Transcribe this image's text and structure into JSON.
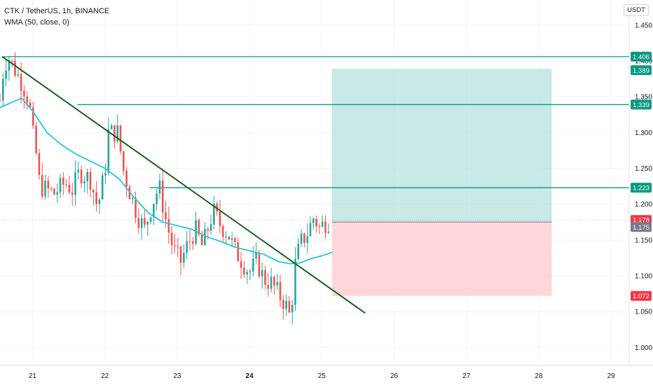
{
  "header": {
    "symbol_line": "CTK / TetherUS, 1h, BINANCE",
    "indicator_line": "WMA (50, close, 0)",
    "currency": "USDT"
  },
  "colors": {
    "up": "#26a69a",
    "down": "#ef5350",
    "wma": "#26c6da",
    "trendline": "#1b5e20",
    "level": "#089981",
    "profit_zone": "#b2dfdb",
    "loss_zone": "#ffcdd2",
    "last_price_badge": "#f23645",
    "entry_badge": "#787b86"
  },
  "chart_data": {
    "type": "candlestick",
    "title": "CTK / TetherUS, 1h, BINANCE",
    "ylim": [
      0.975,
      1.485
    ],
    "xlim": [
      20.55,
      29.25
    ],
    "y_ticks": [
      1.0,
      1.05,
      1.1,
      1.15,
      1.2,
      1.25,
      1.3,
      1.35,
      1.4,
      1.45
    ],
    "y_tick_labels": [
      "1.000",
      "1.050",
      "1.100",
      "1.150",
      "1.200",
      "1.250",
      "1.300",
      "1.350",
      "1.400",
      "1.450"
    ],
    "x_ticks": [
      21,
      22,
      23,
      24,
      25,
      26,
      27,
      28,
      29
    ],
    "x_tick_labels": [
      "21",
      "22",
      "23",
      "24",
      "25",
      "26",
      "27",
      "28",
      "29"
    ],
    "grid": true,
    "candle_path": [
      [
        20.55,
        1.345
      ],
      [
        20.6,
        1.39
      ],
      [
        20.66,
        1.406
      ],
      [
        20.85,
        1.37
      ],
      [
        20.95,
        1.345
      ],
      [
        21.0,
        1.3
      ],
      [
        21.05,
        1.27
      ],
      [
        21.1,
        1.225
      ],
      [
        21.3,
        1.215
      ],
      [
        21.45,
        1.23
      ],
      [
        21.55,
        1.22
      ],
      [
        21.65,
        1.245
      ],
      [
        21.8,
        1.235
      ],
      [
        21.9,
        1.195
      ],
      [
        22.0,
        1.245
      ],
      [
        22.05,
        1.3
      ],
      [
        22.18,
        1.3
      ],
      [
        22.25,
        1.25
      ],
      [
        22.35,
        1.215
      ],
      [
        22.45,
        1.185
      ],
      [
        22.55,
        1.165
      ],
      [
        22.65,
        1.2
      ],
      [
        22.75,
        1.225
      ],
      [
        22.85,
        1.175
      ],
      [
        22.95,
        1.135
      ],
      [
        23.05,
        1.12
      ],
      [
        23.15,
        1.145
      ],
      [
        23.25,
        1.165
      ],
      [
        23.35,
        1.14
      ],
      [
        23.45,
        1.175
      ],
      [
        23.5,
        1.19
      ],
      [
        23.6,
        1.17
      ],
      [
        23.7,
        1.16
      ],
      [
        23.8,
        1.135
      ],
      [
        23.9,
        1.12
      ],
      [
        24.0,
        1.105
      ],
      [
        24.1,
        1.12
      ],
      [
        24.2,
        1.095
      ],
      [
        24.3,
        1.09
      ],
      [
        24.4,
        1.075
      ],
      [
        24.5,
        1.06
      ],
      [
        24.57,
        1.04
      ],
      [
        24.62,
        1.11
      ],
      [
        24.7,
        1.145
      ],
      [
        24.8,
        1.16
      ],
      [
        24.9,
        1.185
      ],
      [
        24.95,
        1.165
      ],
      [
        25.05,
        1.175
      ],
      [
        25.13,
        1.178
      ]
    ],
    "wma_series": {
      "name": "WMA (50, close, 0)",
      "points": [
        [
          20.55,
          1.335
        ],
        [
          20.85,
          1.348
        ],
        [
          21.0,
          1.33
        ],
        [
          21.2,
          1.3
        ],
        [
          21.4,
          1.283
        ],
        [
          21.6,
          1.27
        ],
        [
          21.8,
          1.26
        ],
        [
          22.0,
          1.25
        ],
        [
          22.2,
          1.235
        ],
        [
          22.4,
          1.21
        ],
        [
          22.6,
          1.188
        ],
        [
          22.8,
          1.175
        ],
        [
          23.0,
          1.17
        ],
        [
          23.2,
          1.165
        ],
        [
          23.4,
          1.155
        ],
        [
          23.6,
          1.148
        ],
        [
          23.8,
          1.14
        ],
        [
          24.0,
          1.135
        ],
        [
          24.2,
          1.13
        ],
        [
          24.4,
          1.12
        ],
        [
          24.55,
          1.117
        ],
        [
          24.7,
          1.118
        ],
        [
          24.85,
          1.124
        ],
        [
          25.0,
          1.128
        ],
        [
          25.15,
          1.133
        ]
      ]
    },
    "trendline": {
      "from": [
        20.58,
        1.406
      ],
      "to": [
        25.6,
        1.048
      ]
    },
    "levels": [
      {
        "price": 1.406,
        "x_start": 20.6,
        "label": "1.406"
      },
      {
        "price": 1.339,
        "x_start": 21.62,
        "label": "1.339"
      },
      {
        "price": 1.223,
        "x_start": 22.62,
        "label": "1.223"
      }
    ],
    "position": {
      "x_start": 25.14,
      "x_end": 28.18,
      "entry": 1.175,
      "target": 1.389,
      "stop": 1.072
    },
    "last_price": 1.178,
    "price_badges": [
      {
        "label": "1.406",
        "price": 1.406,
        "kind": "level"
      },
      {
        "label": "1.389",
        "price": 1.389,
        "kind": "target"
      },
      {
        "label": "1.339",
        "price": 1.339,
        "kind": "level"
      },
      {
        "label": "1.223",
        "price": 1.223,
        "kind": "level"
      },
      {
        "label": "1.178",
        "price": 1.178,
        "kind": "last"
      },
      {
        "label": "1.175",
        "price": 1.175,
        "kind": "entry"
      },
      {
        "label": "1.072",
        "price": 1.072,
        "kind": "stop"
      }
    ]
  }
}
